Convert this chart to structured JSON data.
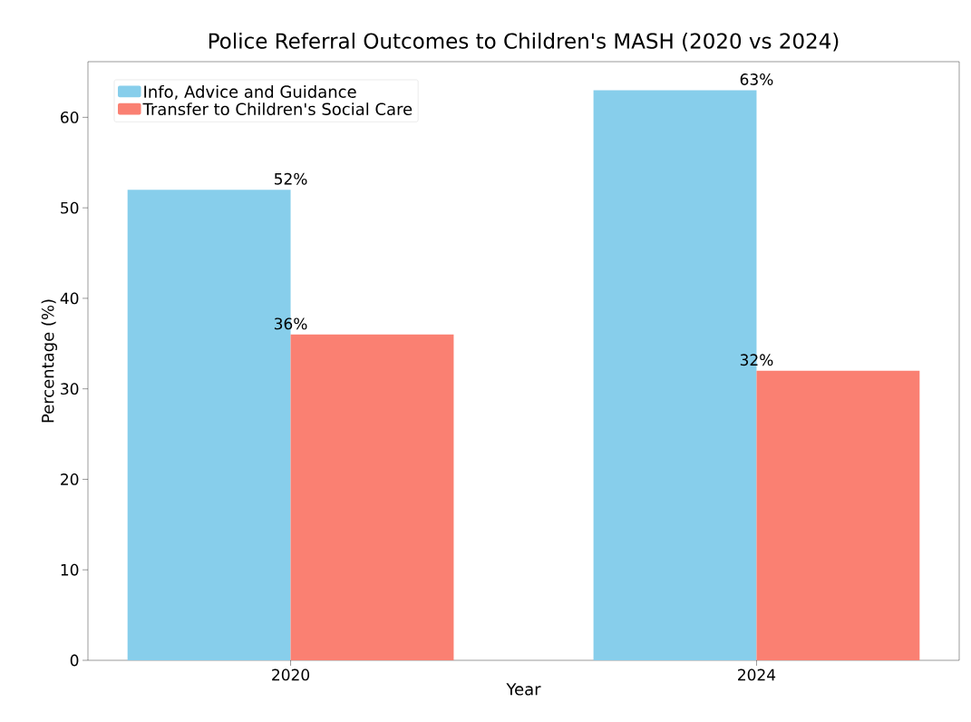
{
  "chart_data": {
    "type": "bar",
    "title": "Police Referral Outcomes to Children's MASH (2020 vs 2024)",
    "xlabel": "Year",
    "ylabel": "Percentage (%)",
    "categories": [
      "2020",
      "2024"
    ],
    "series": [
      {
        "name": "Info, Advice and Guidance",
        "color": "#87ceeb",
        "values": [
          52,
          63
        ],
        "value_labels": [
          "52%",
          "63%"
        ]
      },
      {
        "name": "Transfer to Children's Social Care",
        "color": "#fa8072",
        "values": [
          36,
          32
        ],
        "value_labels": [
          "36%",
          "32%"
        ]
      }
    ],
    "ylim": [
      0,
      66.15
    ],
    "yticks": [
      0,
      10,
      20,
      30,
      40,
      50,
      60
    ],
    "legend": "top left",
    "grid": false
  }
}
